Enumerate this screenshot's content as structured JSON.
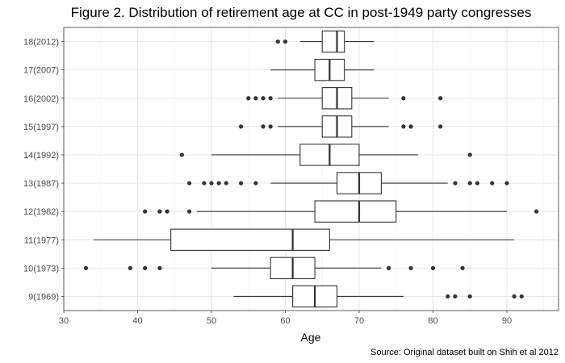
{
  "chart_data": {
    "type": "boxplot",
    "orientation": "horizontal",
    "title": "Figure 2. Distribution of retirement age at CC in post-1949 party congresses",
    "xlabel": "Age",
    "ylabel": "",
    "caption": "Source: Original dataset built on Shih et al 2012",
    "xlim": [
      30,
      97
    ],
    "x_ticks": [
      30,
      40,
      50,
      60,
      70,
      80,
      90
    ],
    "grid": true,
    "legend": "none",
    "colors": {
      "panel_border": "#333333",
      "grid_major": "#e3e3e3",
      "grid_minor": "#f2f2f2",
      "box_fill": "#ffffff",
      "box_line": "#333333",
      "outlier": "#333333",
      "tick_label": "#4d4d4d"
    },
    "categories": [
      "9(1969)",
      "10(1973)",
      "11(1977)",
      "12(1982)",
      "13(1987)",
      "14(1992)",
      "15(1997)",
      "16(2002)",
      "17(2007)",
      "18(2012)"
    ],
    "boxes": [
      {
        "label": "9(1969)",
        "whisker_low": 53,
        "q1": 61,
        "median": 64,
        "q3": 67,
        "whisker_high": 76,
        "outliers": [
          82,
          83,
          85,
          91,
          92
        ]
      },
      {
        "label": "10(1973)",
        "whisker_low": 50,
        "q1": 58,
        "median": 61,
        "q3": 64,
        "whisker_high": 73,
        "outliers": [
          33,
          39,
          41,
          43,
          74,
          77,
          80,
          84
        ]
      },
      {
        "label": "11(1977)",
        "whisker_low": 34,
        "q1": 44.5,
        "median": 61,
        "q3": 66,
        "whisker_high": 91,
        "outliers": []
      },
      {
        "label": "12(1982)",
        "whisker_low": 48,
        "q1": 64,
        "median": 70,
        "q3": 75,
        "whisker_high": 90,
        "outliers": [
          41,
          43,
          44,
          47,
          94
        ]
      },
      {
        "label": "13(1987)",
        "whisker_low": 58,
        "q1": 67,
        "median": 70,
        "q3": 73,
        "whisker_high": 82,
        "outliers": [
          47,
          49,
          50,
          51,
          52,
          54,
          56,
          83,
          85,
          86,
          88,
          90
        ]
      },
      {
        "label": "14(1992)",
        "whisker_low": 50,
        "q1": 62,
        "median": 66,
        "q3": 70,
        "whisker_high": 78,
        "outliers": [
          46,
          85
        ]
      },
      {
        "label": "15(1997)",
        "whisker_low": 59,
        "q1": 65,
        "median": 67,
        "q3": 69,
        "whisker_high": 74,
        "outliers": [
          54,
          57,
          58,
          76,
          77,
          81
        ]
      },
      {
        "label": "16(2002)",
        "whisker_low": 59,
        "q1": 65,
        "median": 67,
        "q3": 69,
        "whisker_high": 74,
        "outliers": [
          55,
          56,
          57,
          58,
          76,
          81
        ]
      },
      {
        "label": "17(2007)",
        "whisker_low": 58,
        "q1": 64,
        "median": 66,
        "q3": 68,
        "whisker_high": 72,
        "outliers": []
      },
      {
        "label": "18(2012)",
        "whisker_low": 62,
        "q1": 65,
        "median": 67,
        "q3": 68,
        "whisker_high": 72,
        "outliers": [
          59,
          60
        ]
      }
    ]
  }
}
